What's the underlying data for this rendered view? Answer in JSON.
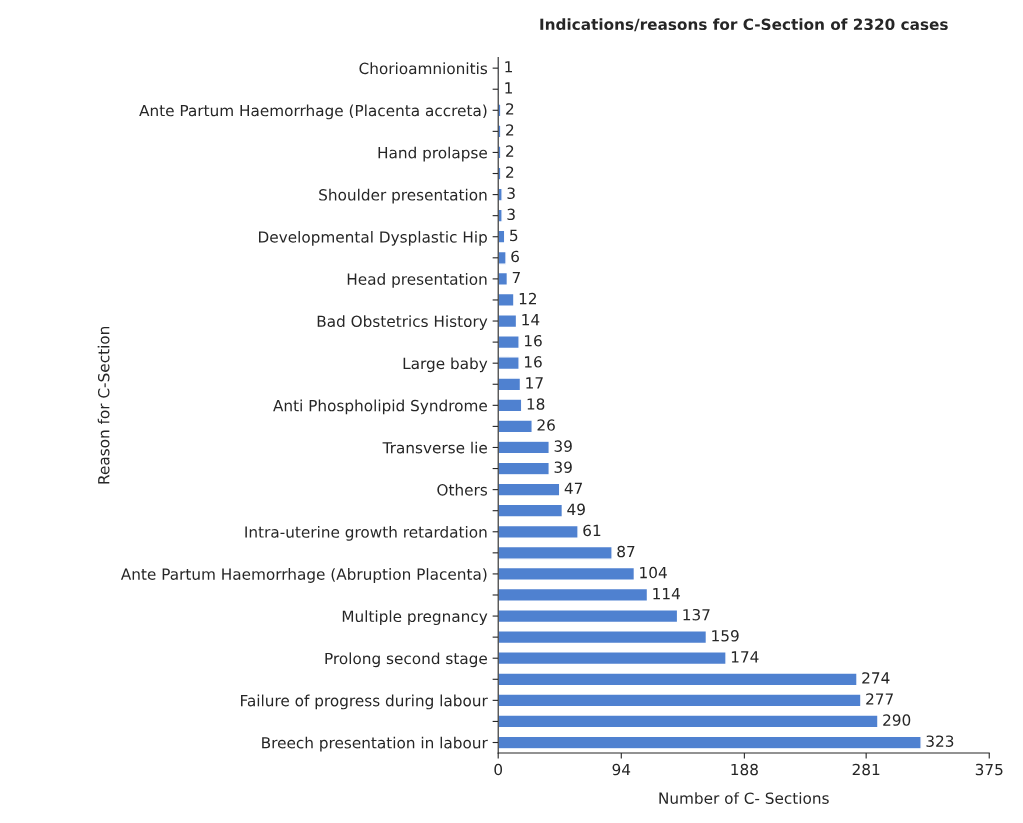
{
  "chart_data": {
    "type": "bar",
    "orientation": "horizontal",
    "title": "Indications/reasons for C-Section of 2320 cases",
    "xlabel": "Number of C- Sections",
    "ylabel": "Reason for C-Section",
    "categories": [
      "Chorioamnionitis",
      null,
      "Ante Partum Haemorrhage (Placenta accreta)",
      null,
      "Hand prolapse",
      null,
      "Shoulder presentation",
      null,
      "Developmental Dysplastic Hip",
      null,
      "Head presentation",
      null,
      "Bad Obstetrics History",
      null,
      "Large baby",
      null,
      "Anti Phospholipid Syndrome",
      null,
      "Transverse lie",
      null,
      "Others",
      null,
      "Intra-uterine growth retardation",
      null,
      "Ante Partum Haemorrhage (Abruption Placenta)",
      null,
      "Multiple pregnancy",
      null,
      "Prolong second stage",
      null,
      "Failure of progress during labour",
      null,
      "Breech presentation in labour"
    ],
    "values": [
      1,
      1,
      2,
      2,
      2,
      2,
      3,
      3,
      5,
      6,
      7,
      12,
      14,
      16,
      16,
      17,
      18,
      26,
      39,
      39,
      47,
      49,
      61,
      87,
      104,
      114,
      137,
      159,
      174,
      274,
      277,
      290,
      323
    ],
    "color": "#4f81d0",
    "xlim": [
      0,
      375
    ],
    "xticks": [
      0,
      94,
      188,
      281,
      375
    ],
    "grid": false,
    "legend": false,
    "data_labels": true
  }
}
